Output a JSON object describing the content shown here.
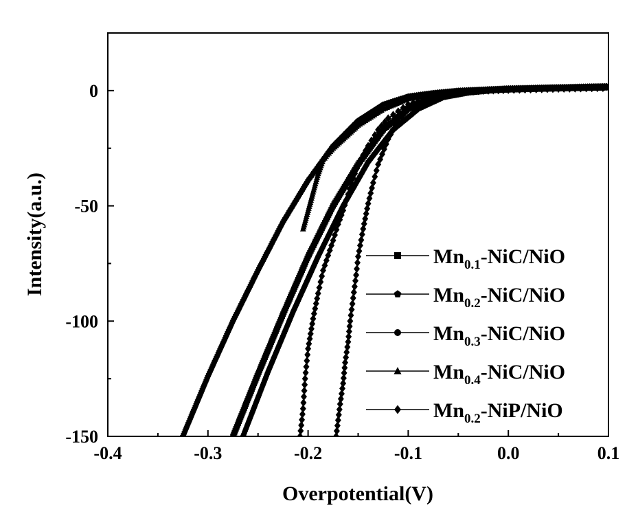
{
  "chart_data": {
    "type": "line",
    "xlabel": "Overpotential(V)",
    "ylabel": "Intensity(a.u.)",
    "xlim": [
      -0.4,
      0.1
    ],
    "ylim": [
      -150,
      25
    ],
    "x_ticks": [
      -0.4,
      -0.3,
      -0.2,
      -0.1,
      0.0,
      0.1
    ],
    "x_tick_labels": [
      "-0.4",
      "-0.3",
      "-0.2",
      "-0.1",
      "0.0",
      "0.1"
    ],
    "y_ticks": [
      0,
      -50,
      -100,
      -150
    ],
    "y_tick_labels": [
      "0",
      "-50",
      "-100",
      "-150"
    ],
    "grid": false,
    "legend_position": "bottom-right",
    "series": [
      {
        "name": "Mn0.1-NiC/NiO",
        "legend_main": "Mn",
        "legend_sub": "0.1",
        "legend_tail": "-NiC/NiO",
        "marker": "square",
        "x": [
          -0.275,
          -0.25,
          -0.225,
          -0.2,
          -0.175,
          -0.15,
          -0.125,
          -0.1,
          -0.075,
          -0.05,
          -0.025,
          0.0,
          0.05,
          0.1
        ],
        "y": [
          -150,
          -123,
          -97,
          -72,
          -50,
          -32,
          -17,
          -8,
          -3.5,
          -1,
          0,
          0.5,
          1,
          1.5
        ]
      },
      {
        "name": "Mn0.2-NiC/NiO",
        "legend_main": "Mn",
        "legend_sub": "0.2",
        "legend_tail": "-NiC/NiO",
        "marker": "pentagon",
        "x": [
          -0.325,
          -0.3,
          -0.275,
          -0.25,
          -0.225,
          -0.2,
          -0.175,
          -0.15,
          -0.125,
          -0.1,
          -0.075,
          -0.05,
          -0.025,
          0.0,
          0.05,
          0.1
        ],
        "y": [
          -150,
          -124,
          -100,
          -78,
          -57,
          -39,
          -24,
          -13,
          -6,
          -2.5,
          -1,
          0,
          0.5,
          1,
          1.5,
          2
        ]
      },
      {
        "name": "Mn0.3-NiC/NiO",
        "legend_main": "Mn",
        "legend_sub": "0.3",
        "legend_tail": "-NiC/NiO",
        "marker": "circle",
        "x": [
          -0.265,
          -0.24,
          -0.215,
          -0.19,
          -0.165,
          -0.14,
          -0.115,
          -0.09,
          -0.065,
          -0.04,
          -0.015,
          0.0,
          0.05,
          0.1
        ],
        "y": [
          -150,
          -122,
          -96,
          -72,
          -50,
          -31,
          -17,
          -8,
          -3,
          -1,
          0,
          0.3,
          0.8,
          1.2
        ]
      },
      {
        "name": "Mn0.4-NiC/NiO",
        "legend_main": "Mn",
        "legend_sub": "0.4",
        "legend_tail": "-NiC/NiO",
        "marker": "triangle",
        "x": [
          -0.205,
          -0.2,
          -0.195,
          -0.19,
          -0.185,
          -0.175,
          -0.15,
          -0.125,
          -0.1,
          -0.075,
          -0.05,
          -0.025,
          0.0,
          0.05,
          0.1
        ],
        "y": [
          -60,
          -52,
          -44,
          -36,
          -30,
          -25,
          -15,
          -8,
          -3.5,
          -1.5,
          -0.5,
          0,
          0.3,
          0.8,
          1.2
        ]
      },
      {
        "name": "Mn0.2-NiP/NiO",
        "legend_main": "Mn",
        "legend_sub": "0.2",
        "legend_tail": "-NiP/NiO",
        "marker": "diamond",
        "x": [
          -0.208,
          -0.205,
          -0.203,
          -0.2,
          -0.195,
          -0.19,
          -0.185,
          -0.175,
          -0.17,
          -0.165,
          -0.16,
          -0.155,
          -0.15,
          -0.14,
          -0.13,
          -0.12,
          -0.1,
          -0.075,
          -0.05,
          -0.025,
          0.0,
          0.05,
          0.1
        ],
        "y": [
          -150,
          -138,
          -125,
          -112,
          -99,
          -88,
          -78,
          -65,
          -58,
          -52,
          -45,
          -38,
          -32,
          -24,
          -17,
          -12,
          -6,
          -2.5,
          -1,
          0,
          0.3,
          0.8,
          1.2
        ]
      },
      {
        "name": "Mn0.2-NiP/NiO (branch 2)",
        "legend_hidden": true,
        "marker": "diamond",
        "x": [
          -0.172,
          -0.17,
          -0.168,
          -0.165,
          -0.163,
          -0.16,
          -0.158,
          -0.155,
          -0.152,
          -0.15,
          -0.145,
          -0.14,
          -0.135,
          -0.13,
          -0.12,
          -0.11,
          -0.1,
          -0.09,
          -0.08,
          -0.06,
          -0.04,
          -0.02,
          0.0,
          0.05,
          0.1
        ],
        "y": [
          -150,
          -143,
          -136,
          -127,
          -118,
          -109,
          -100,
          -90,
          -80,
          -72,
          -60,
          -49,
          -40,
          -32,
          -21,
          -13,
          -8,
          -4.5,
          -2.5,
          -1,
          -0.3,
          0,
          0.3,
          0.8,
          1.2
        ]
      }
    ]
  }
}
